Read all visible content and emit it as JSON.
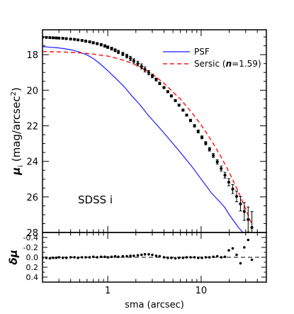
{
  "chart_data": [
    {
      "type": "scatter",
      "panel": "surface-brightness-profile",
      "xlabel": "",
      "ylabel_parts": [
        "μ",
        "i",
        " (mag/arcsec",
        "2",
        ")"
      ],
      "xscale": "log",
      "xlim": [
        0.2,
        50
      ],
      "ylim": [
        28,
        16.6
      ],
      "y_inverted": true,
      "grid": false,
      "y_ticks": [
        18,
        20,
        22,
        24,
        26,
        28
      ],
      "annotation": "SDSS i",
      "legend": {
        "placement": "top-right",
        "entries": [
          {
            "label_parts": [
              "PSF"
            ],
            "color": "#1a1aff",
            "style": "solid"
          },
          {
            "label_parts": [
              "Sersic (",
              "n",
              "=1.59)"
            ],
            "color": "#ff1a1a",
            "style": "dashed"
          }
        ]
      },
      "series": [
        {
          "name": "data",
          "style": "points-with-errorbars",
          "color": "#000000",
          "x": [
            0.2,
            0.22,
            0.24,
            0.26,
            0.28,
            0.3,
            0.33,
            0.36,
            0.4,
            0.44,
            0.48,
            0.53,
            0.58,
            0.64,
            0.7,
            0.77,
            0.85,
            0.93,
            1.0,
            1.1,
            1.2,
            1.3,
            1.45,
            1.6,
            1.75,
            1.9,
            2.1,
            2.3,
            2.5,
            2.75,
            3.0,
            3.3,
            3.6,
            4.0,
            4.4,
            4.8,
            5.3,
            5.8,
            6.4,
            7.0,
            7.7,
            8.5,
            9.3,
            10.2,
            11.2,
            12.3,
            13.5,
            14.9,
            16.4,
            18.0,
            19.8,
            21.8,
            24.0,
            26.4,
            29.0,
            31.9,
            35.0
          ],
          "y": [
            17.02,
            17.03,
            17.04,
            17.05,
            17.06,
            17.07,
            17.08,
            17.1,
            17.12,
            17.14,
            17.17,
            17.2,
            17.24,
            17.28,
            17.33,
            17.38,
            17.44,
            17.51,
            17.58,
            17.66,
            17.75,
            17.85,
            17.96,
            18.08,
            18.21,
            18.35,
            18.5,
            18.66,
            18.83,
            19.01,
            19.2,
            19.4,
            19.62,
            19.85,
            20.08,
            20.32,
            20.58,
            20.84,
            21.12,
            21.4,
            21.7,
            22.0,
            22.32,
            22.65,
            22.98,
            23.32,
            23.67,
            24.03,
            24.4,
            24.78,
            25.17,
            25.56,
            25.97,
            26.39,
            26.82,
            27.27,
            27.72
          ],
          "yerr": [
            0.05,
            0.05,
            0.05,
            0.05,
            0.05,
            0.05,
            0.05,
            0.05,
            0.05,
            0.05,
            0.05,
            0.05,
            0.06,
            0.06,
            0.06,
            0.06,
            0.07,
            0.07,
            0.07,
            0.08,
            0.08,
            0.09,
            0.09,
            0.1,
            0.12,
            0.12,
            0.13,
            0.14,
            0.14,
            0.12,
            0.1,
            0.08,
            0.07,
            0.06,
            0.06,
            0.06,
            0.06,
            0.06,
            0.06,
            0.06,
            0.07,
            0.07,
            0.08,
            0.08,
            0.09,
            0.1,
            0.11,
            0.12,
            0.14,
            0.16,
            0.2,
            0.25,
            0.3,
            0.4,
            0.5,
            0.7,
            0.9
          ]
        },
        {
          "name": "PSF",
          "style": "line",
          "color": "#1a1aff",
          "x": [
            0.2,
            0.3,
            0.4,
            0.5,
            0.6,
            0.7,
            0.8,
            1.0,
            1.2,
            1.5,
            1.8,
            2.2,
            2.7,
            3.3,
            4.0,
            5.0,
            6.0,
            8.0,
            10.0,
            13.0,
            16.0,
            18.0,
            20.0,
            22.0,
            25.0,
            28.0
          ],
          "y": [
            17.55,
            17.62,
            17.72,
            17.85,
            18.02,
            18.22,
            18.45,
            18.9,
            19.3,
            19.8,
            20.3,
            20.8,
            21.4,
            21.9,
            22.4,
            23.0,
            23.5,
            24.3,
            25.0,
            25.8,
            26.3,
            26.6,
            27.0,
            27.3,
            27.7,
            28.0
          ]
        },
        {
          "name": "Sersic",
          "style": "line-dashed",
          "color": "#ff1a1a",
          "x": [
            0.2,
            0.3,
            0.4,
            0.5,
            0.6,
            0.7,
            0.8,
            1.0,
            1.2,
            1.5,
            1.8,
            2.2,
            2.7,
            3.3,
            4.0,
            5.0,
            6.0,
            8.0,
            10.0,
            13.0,
            16.0,
            20.0,
            25.0,
            30.0,
            35.0
          ],
          "y": [
            17.82,
            17.84,
            17.87,
            17.9,
            17.93,
            17.97,
            18.01,
            18.08,
            18.18,
            18.32,
            18.48,
            18.68,
            18.94,
            19.26,
            19.6,
            20.1,
            20.5,
            21.28,
            21.95,
            22.86,
            23.66,
            24.62,
            25.7,
            26.68,
            27.56
          ]
        }
      ]
    },
    {
      "type": "scatter",
      "panel": "residuals",
      "xlabel": "sma (arcsec)",
      "ylabel": "δμ",
      "xscale": "log",
      "xlim": [
        0.2,
        50
      ],
      "x_ticks": [
        1,
        10
      ],
      "x_ticklabels": [
        "1",
        "10"
      ],
      "ylim": [
        0.5,
        -0.5
      ],
      "y_inverted": true,
      "y_ticks": [
        -0.4,
        -0.2,
        0.0,
        0.2,
        0.4
      ],
      "y_ticklabels": [
        "-0.4",
        "-0.2",
        "0.0",
        "0.2",
        "0.4"
      ],
      "zero_line": "dashed",
      "series": [
        {
          "name": "residual",
          "style": "points",
          "color": "#000000",
          "x": [
            0.2,
            0.22,
            0.24,
            0.26,
            0.28,
            0.3,
            0.33,
            0.36,
            0.4,
            0.44,
            0.48,
            0.53,
            0.58,
            0.64,
            0.7,
            0.77,
            0.85,
            0.93,
            1.0,
            1.1,
            1.2,
            1.3,
            1.45,
            1.6,
            1.75,
            1.9,
            2.1,
            2.3,
            2.5,
            2.75,
            3.0,
            3.3,
            3.6,
            4.0,
            4.4,
            4.8,
            5.3,
            5.8,
            6.4,
            7.0,
            7.7,
            8.5,
            9.3,
            10.2,
            11.2,
            12.3,
            13.5,
            14.9,
            16.4,
            18.0,
            19.8,
            21.8,
            24.0,
            26.4,
            29.0,
            31.9,
            35.0
          ],
          "y": [
            0.01,
            0.01,
            0.02,
            0.01,
            0.01,
            0.0,
            0.01,
            0.01,
            0.0,
            0.0,
            0.01,
            0.0,
            0.0,
            0.0,
            -0.01,
            0.0,
            -0.01,
            -0.01,
            0.0,
            -0.01,
            -0.02,
            -0.01,
            -0.02,
            -0.02,
            -0.03,
            -0.03,
            -0.04,
            -0.05,
            -0.06,
            -0.06,
            -0.05,
            -0.03,
            -0.02,
            0.0,
            0.01,
            0.01,
            0.02,
            0.01,
            0.01,
            0.0,
            0.0,
            0.0,
            0.01,
            0.01,
            0.0,
            0.0,
            -0.01,
            -0.02,
            0.0,
            -0.01,
            -0.14,
            -0.18,
            -0.05,
            0.12,
            -0.2,
            -0.35,
            0.05
          ]
        }
      ]
    }
  ]
}
